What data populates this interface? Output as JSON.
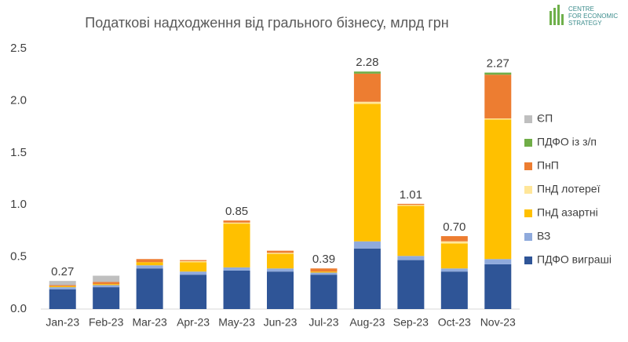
{
  "chart_data": {
    "type": "stacked_bar",
    "title": "Податкові надходження від грального бізнесу, млрд грн",
    "logo": [
      "CENTRE",
      "FOR ECONOMIC",
      "STRATEGY"
    ],
    "categories": [
      "Jan-23",
      "Feb-23",
      "Mar-23",
      "Apr-23",
      "May-23",
      "Jun-23",
      "Jul-23",
      "Aug-23",
      "Sep-23",
      "Oct-23",
      "Nov-23"
    ],
    "series": [
      {
        "name": "ПДФО виграші",
        "color": "#2f5597",
        "values": [
          0.19,
          0.21,
          0.39,
          0.33,
          0.37,
          0.36,
          0.33,
          0.58,
          0.47,
          0.36,
          0.43
        ]
      },
      {
        "name": "ВЗ",
        "color": "#8faadc",
        "values": [
          0.02,
          0.02,
          0.03,
          0.03,
          0.03,
          0.03,
          0.02,
          0.07,
          0.04,
          0.03,
          0.05
        ]
      },
      {
        "name": "ПнД азартні",
        "color": "#ffc000",
        "values": [
          0.01,
          0.01,
          0.03,
          0.09,
          0.42,
          0.14,
          0.01,
          1.32,
          0.48,
          0.24,
          1.34
        ]
      },
      {
        "name": "ПнД лотереї",
        "color": "#ffe699",
        "values": [
          0,
          0,
          0,
          0.01,
          0.01,
          0.01,
          0,
          0.02,
          0.01,
          0.02,
          0.01
        ]
      },
      {
        "name": "ПнП",
        "color": "#ed7d31",
        "values": [
          0.01,
          0.02,
          0.03,
          0.01,
          0.02,
          0.02,
          0.03,
          0.27,
          0.01,
          0.05,
          0.42
        ]
      },
      {
        "name": "ПДФО із з/п",
        "color": "#70ad47",
        "values": [
          0,
          0,
          0,
          0,
          0,
          0,
          0,
          0.02,
          0,
          0,
          0.02
        ]
      },
      {
        "name": "ЄП",
        "color": "#bfbfbf",
        "values": [
          0.04,
          0.06,
          0,
          0,
          0,
          0,
          0,
          0,
          0,
          0,
          0
        ]
      }
    ],
    "totals": {
      "values": [
        0.27,
        null,
        null,
        null,
        0.85,
        null,
        0.39,
        2.28,
        1.01,
        0.7,
        2.27
      ],
      "value_labels": [
        "0.27",
        null,
        null,
        null,
        "0.85",
        null,
        "0.39",
        "2.28",
        "1.01",
        "0.70",
        "2.27"
      ]
    },
    "ylim": [
      0,
      2.5
    ],
    "yticks": [
      {
        "value": 0,
        "label": "0.0"
      },
      0.5,
      {
        "value": 1,
        "label": "1.0"
      },
      1.5,
      {
        "value": 2,
        "label": "2.0"
      },
      2.5
    ],
    "grid": false,
    "legend": "right"
  }
}
